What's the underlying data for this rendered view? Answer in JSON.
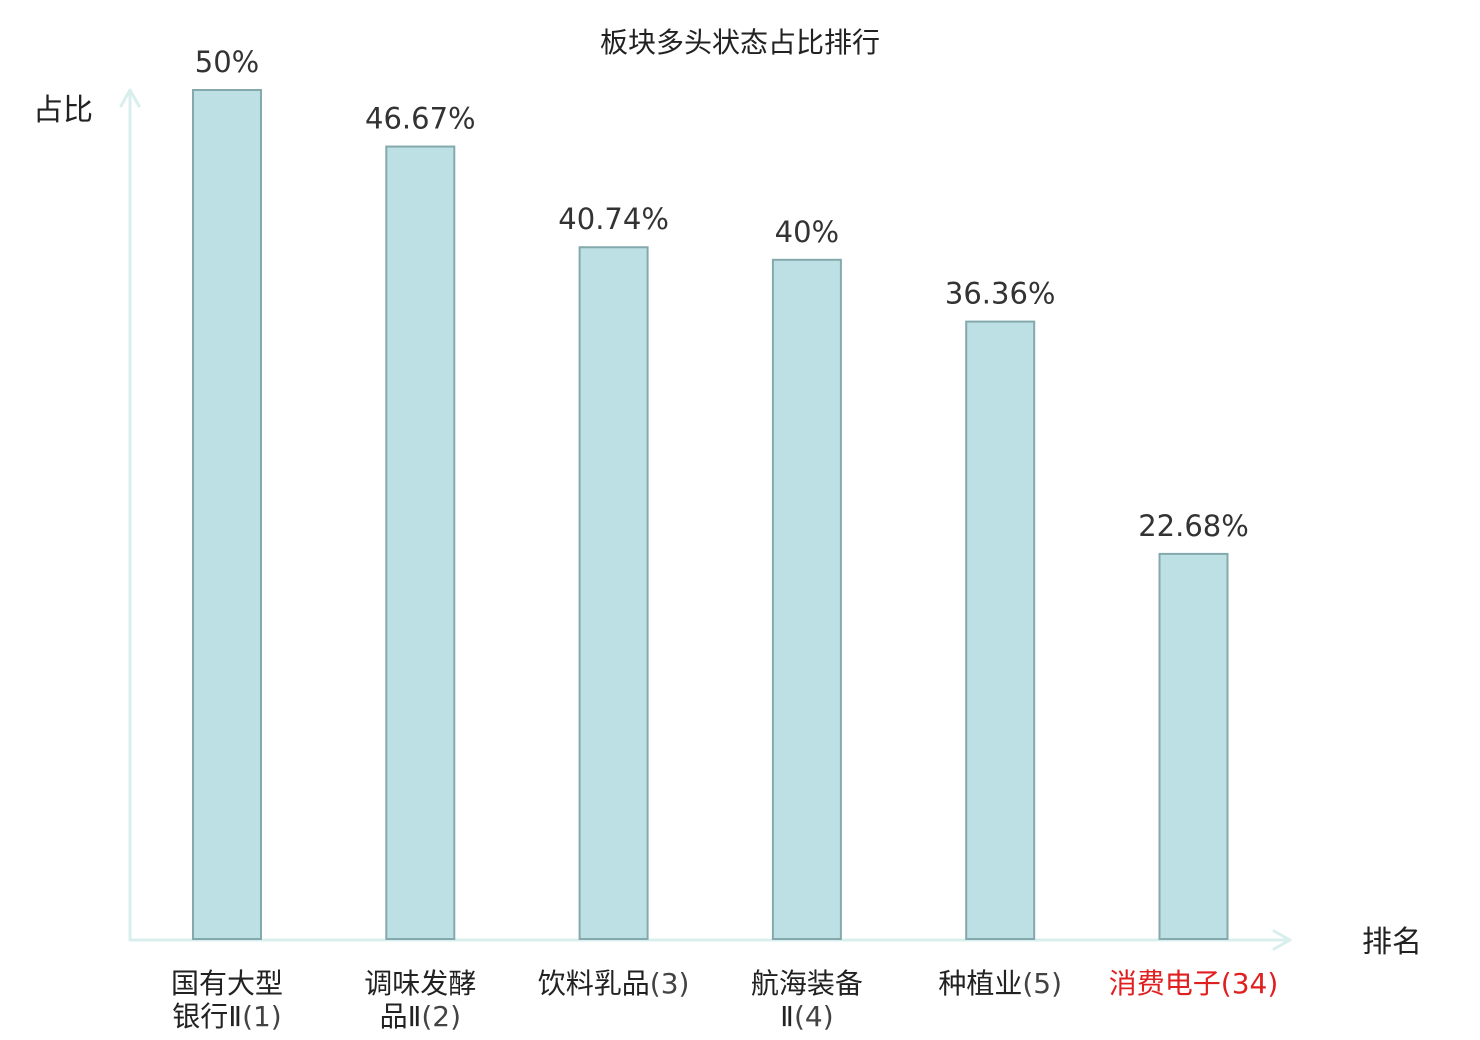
{
  "chart_data": {
    "type": "bar",
    "title": "板块多头状态占比排行",
    "ylabel": "占比",
    "xlabel": "排名",
    "ylim": [
      0,
      50
    ],
    "grid": false,
    "categories": [
      {
        "name_lines": [
          "国有大型",
          "银行Ⅱ"
        ],
        "rank": "(1)",
        "highlight": false
      },
      {
        "name_lines": [
          "调味发酵",
          "品Ⅱ"
        ],
        "rank": "(2)",
        "highlight": false
      },
      {
        "name_lines": [
          "饮料乳品"
        ],
        "rank": "(3)",
        "highlight": false
      },
      {
        "name_lines": [
          "航海装备",
          "Ⅱ"
        ],
        "rank": "(4)",
        "highlight": false
      },
      {
        "name_lines": [
          "种植业"
        ],
        "rank": "(5)",
        "highlight": false
      },
      {
        "name_lines": [
          "消费电子"
        ],
        "rank": "(34)",
        "highlight": true
      }
    ],
    "values": [
      50,
      46.67,
      40.74,
      40,
      36.36,
      22.68
    ],
    "value_labels": [
      "50%",
      "46.67%",
      "40.74%",
      "40%",
      "36.36%",
      "22.68%"
    ]
  },
  "colors": {
    "bar_fill": "#bce0e3",
    "bar_stroke": "#84a9ac",
    "axis": "#d8efee",
    "highlight_text": "#e02020",
    "text": "#222222"
  }
}
